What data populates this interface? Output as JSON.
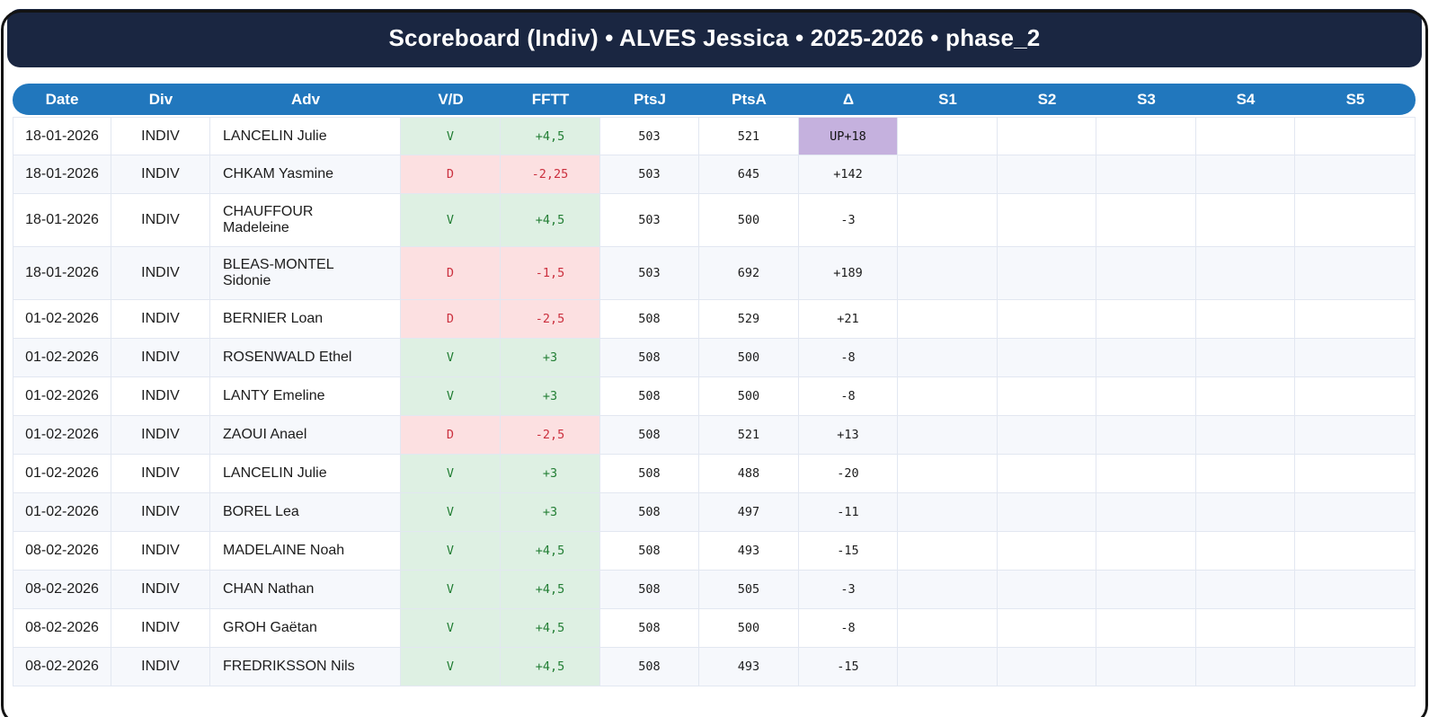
{
  "header": {
    "title": "Scoreboard (Indiv) • ALVES Jessica • 2025-2026 • phase_2"
  },
  "table": {
    "columns": [
      "Date",
      "Div",
      "Adv",
      "V/D",
      "FFTT",
      "PtsJ",
      "PtsA",
      "Δ",
      "S1",
      "S2",
      "S3",
      "S4",
      "S5"
    ],
    "rows": [
      {
        "date": "18-01-2026",
        "div": "INDIV",
        "adv": "LANCELIN Julie",
        "vd": "V",
        "fftt": "+4,5",
        "ptsj": "503",
        "ptsa": "521",
        "delta": "UP+18",
        "delta_highlight": true
      },
      {
        "date": "18-01-2026",
        "div": "INDIV",
        "adv": "CHKAM Yasmine",
        "vd": "D",
        "fftt": "-2,25",
        "ptsj": "503",
        "ptsa": "645",
        "delta": "+142",
        "delta_highlight": false
      },
      {
        "date": "18-01-2026",
        "div": "INDIV",
        "adv": "CHAUFFOUR Madeleine",
        "vd": "V",
        "fftt": "+4,5",
        "ptsj": "503",
        "ptsa": "500",
        "delta": "-3",
        "delta_highlight": false
      },
      {
        "date": "18-01-2026",
        "div": "INDIV",
        "adv": "BLEAS-MONTEL Sidonie",
        "vd": "D",
        "fftt": "-1,5",
        "ptsj": "503",
        "ptsa": "692",
        "delta": "+189",
        "delta_highlight": false
      },
      {
        "date": "01-02-2026",
        "div": "INDIV",
        "adv": "BERNIER Loan",
        "vd": "D",
        "fftt": "-2,5",
        "ptsj": "508",
        "ptsa": "529",
        "delta": "+21",
        "delta_highlight": false
      },
      {
        "date": "01-02-2026",
        "div": "INDIV",
        "adv": "ROSENWALD Ethel",
        "vd": "V",
        "fftt": "+3",
        "ptsj": "508",
        "ptsa": "500",
        "delta": "-8",
        "delta_highlight": false
      },
      {
        "date": "01-02-2026",
        "div": "INDIV",
        "adv": "LANTY Emeline",
        "vd": "V",
        "fftt": "+3",
        "ptsj": "508",
        "ptsa": "500",
        "delta": "-8",
        "delta_highlight": false
      },
      {
        "date": "01-02-2026",
        "div": "INDIV",
        "adv": "ZAOUI Anael",
        "vd": "D",
        "fftt": "-2,5",
        "ptsj": "508",
        "ptsa": "521",
        "delta": "+13",
        "delta_highlight": false
      },
      {
        "date": "01-02-2026",
        "div": "INDIV",
        "adv": "LANCELIN Julie",
        "vd": "V",
        "fftt": "+3",
        "ptsj": "508",
        "ptsa": "488",
        "delta": "-20",
        "delta_highlight": false
      },
      {
        "date": "01-02-2026",
        "div": "INDIV",
        "adv": "BOREL Lea",
        "vd": "V",
        "fftt": "+3",
        "ptsj": "508",
        "ptsa": "497",
        "delta": "-11",
        "delta_highlight": false
      },
      {
        "date": "08-02-2026",
        "div": "INDIV",
        "adv": "MADELAINE Noah",
        "vd": "V",
        "fftt": "+4,5",
        "ptsj": "508",
        "ptsa": "493",
        "delta": "-15",
        "delta_highlight": false
      },
      {
        "date": "08-02-2026",
        "div": "INDIV",
        "adv": "CHAN Nathan",
        "vd": "V",
        "fftt": "+4,5",
        "ptsj": "508",
        "ptsa": "505",
        "delta": "-3",
        "delta_highlight": false
      },
      {
        "date": "08-02-2026",
        "div": "INDIV",
        "adv": "GROH Gaëtan",
        "vd": "V",
        "fftt": "+4,5",
        "ptsj": "508",
        "ptsa": "500",
        "delta": "-8",
        "delta_highlight": false
      },
      {
        "date": "08-02-2026",
        "div": "INDIV",
        "adv": "FREDRIKSSON Nils",
        "vd": "V",
        "fftt": "+4,5",
        "ptsj": "508",
        "ptsa": "493",
        "delta": "-15",
        "delta_highlight": false
      }
    ]
  },
  "colors": {
    "title_bar_bg": "#1a2641",
    "table_header_bg": "#2177bd",
    "win_bg": "#def0e3",
    "win_text": "#227e34",
    "loss_bg": "#fce0e1",
    "loss_text": "#cb303e",
    "delta_highlight_bg": "#c5b1de",
    "row_alt_bg": "#f6f8fc"
  }
}
